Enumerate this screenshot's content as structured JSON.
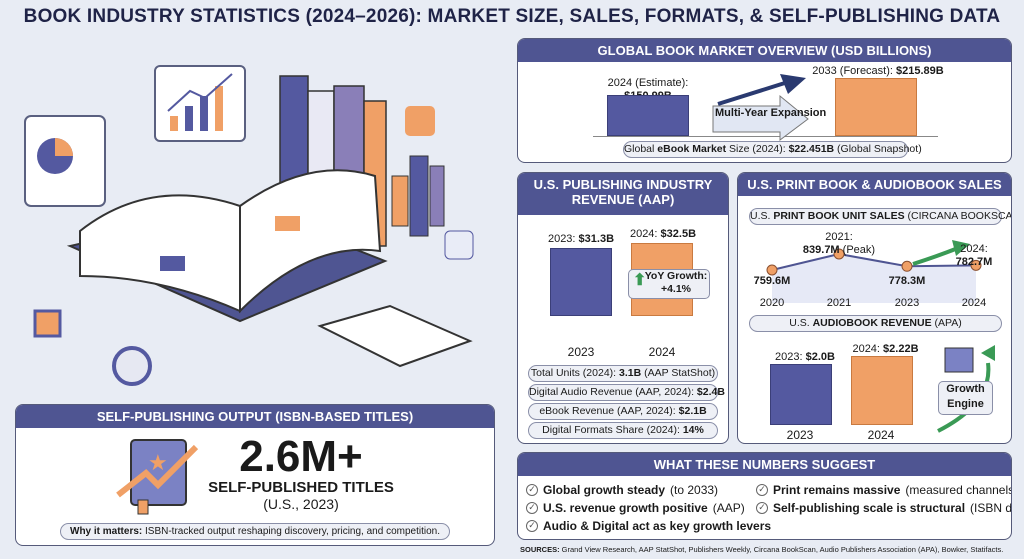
{
  "title": "BOOK INDUSTRY STATISTICS (2024–2026): MARKET SIZE, SALES, FORMATS, & SELF-PUBLISHING DATA",
  "colors": {
    "header": "#4f5592",
    "bar_blue": "#5459a0",
    "bar_orange": "#f0a066",
    "background": "#e8ecf4",
    "growth_green": "#3a9a55"
  },
  "global": {
    "header": "GLOBAL BOOK MARKET OVERVIEW (USD BILLIONS)",
    "label_2024": "2024 (Estimate):",
    "value_2024": "$150.99B",
    "label_2033": "2033 (Forecast): ",
    "value_2033": "$215.89B",
    "arrow_text": "Multi-Year Expansion",
    "ebook_pre": "Global ",
    "ebook_bold": "eBook Market",
    "ebook_mid": " Size (2024): ",
    "ebook_value": "$22.451B",
    "ebook_post": " (Global Snapshot)"
  },
  "us_pub": {
    "header": "U.S. PUBLISHING INDUSTRY REVENUE (AAP)",
    "label_2023": "2023: ",
    "value_2023": "$31.3B",
    "label_2024": "2024: ",
    "value_2024": "$32.5B",
    "yoy_label": "YoY Growth:",
    "yoy_value": "+4.1%",
    "x_2023": "2023",
    "x_2024": "2024",
    "stats": [
      {
        "label": "Total Units (2024): ",
        "value": "3.1B",
        "post": " (AAP StatShot)"
      },
      {
        "label": "Digital Audio Revenue (AAP, 2024): ",
        "value": "$2.4B",
        "post": ""
      },
      {
        "label": "eBook Revenue (AAP, 2024): ",
        "value": "$2.1B",
        "post": ""
      },
      {
        "label": "Digital Formats Share (2024): ",
        "value": "14%",
        "post": ""
      }
    ]
  },
  "print": {
    "header": "U.S. PRINT BOOK & AUDIOBOOK SALES",
    "sub_pre": "U.S. ",
    "sub_bold": "PRINT BOOK UNIT SALES",
    "sub_post": " (CIRCANA BOOKSCAN)",
    "points": [
      {
        "year": "2020",
        "value": "759.6M",
        "prefix": "",
        "suffix": ""
      },
      {
        "year": "2021",
        "value": "839.7M",
        "prefix": "2021:",
        "suffix": " (Peak)"
      },
      {
        "year": "2023",
        "value": "778.3M",
        "prefix": "",
        "suffix": ""
      },
      {
        "year": "2024",
        "value": "782.7M",
        "prefix": "2024:",
        "suffix": ""
      }
    ],
    "audio_pre": "U.S. ",
    "audio_bold": "AUDIOBOOK REVENUE",
    "audio_post": " (APA)",
    "audio_label_2023": "2023: ",
    "audio_value_2023": "$2.0B",
    "audio_label_2024": "2024: ",
    "audio_value_2024": "$2.22B",
    "x_2023": "2023",
    "x_2024": "2024",
    "growth_engine": "Growth Engine"
  },
  "self_pub": {
    "header": "SELF-PUBLISHING OUTPUT (ISBN-BASED TITLES)",
    "big": "2.6M+",
    "sub": "SELF-PUBLISHED TITLES",
    "scope": "(U.S., 2023)",
    "why_bold": "Why it matters:",
    "why_text": " ISBN-tracked output reshaping discovery, pricing, and competition."
  },
  "suggest": {
    "header": "WHAT THESE NUMBERS SUGGEST",
    "items": [
      {
        "bold": "Global growth steady",
        "rest": " (to 2033)"
      },
      {
        "bold": "U.S. revenue growth positive",
        "rest": " (AAP)"
      },
      {
        "bold": "Audio & Digital act as key growth levers",
        "rest": ""
      },
      {
        "bold": "Print remains massive",
        "rest": " (measured channels)"
      },
      {
        "bold": "Self-publishing scale is structural",
        "rest": " (ISBN data)"
      }
    ]
  },
  "sources_label": "SOURCES:",
  "sources_text": " Grand View Research, AAP StatShot, Publishers Weekly, Circana BookScan, Audio Publishers Association (APA), Bowker, Statifacts.",
  "chart_data": [
    {
      "type": "bar",
      "title": "GLOBAL BOOK MARKET OVERVIEW (USD BILLIONS)",
      "categories": [
        "2024 (Estimate)",
        "2033 (Forecast)"
      ],
      "values": [
        150.99,
        215.89
      ],
      "unit": "USD billions"
    },
    {
      "type": "bar",
      "title": "U.S. PUBLISHING INDUSTRY REVENUE (AAP)",
      "categories": [
        "2023",
        "2024"
      ],
      "values": [
        31.3,
        32.5
      ],
      "unit": "USD billions"
    },
    {
      "type": "line",
      "title": "U.S. PRINT BOOK UNIT SALES (CIRCANA BOOKSCAN)",
      "x": [
        "2020",
        "2021",
        "2023",
        "2024"
      ],
      "values": [
        759.6,
        839.7,
        778.3,
        782.7
      ],
      "unit": "millions"
    },
    {
      "type": "bar",
      "title": "U.S. AUDIOBOOK REVENUE (APA)",
      "categories": [
        "2023",
        "2024"
      ],
      "values": [
        2.0,
        2.22
      ],
      "unit": "USD billions"
    }
  ]
}
